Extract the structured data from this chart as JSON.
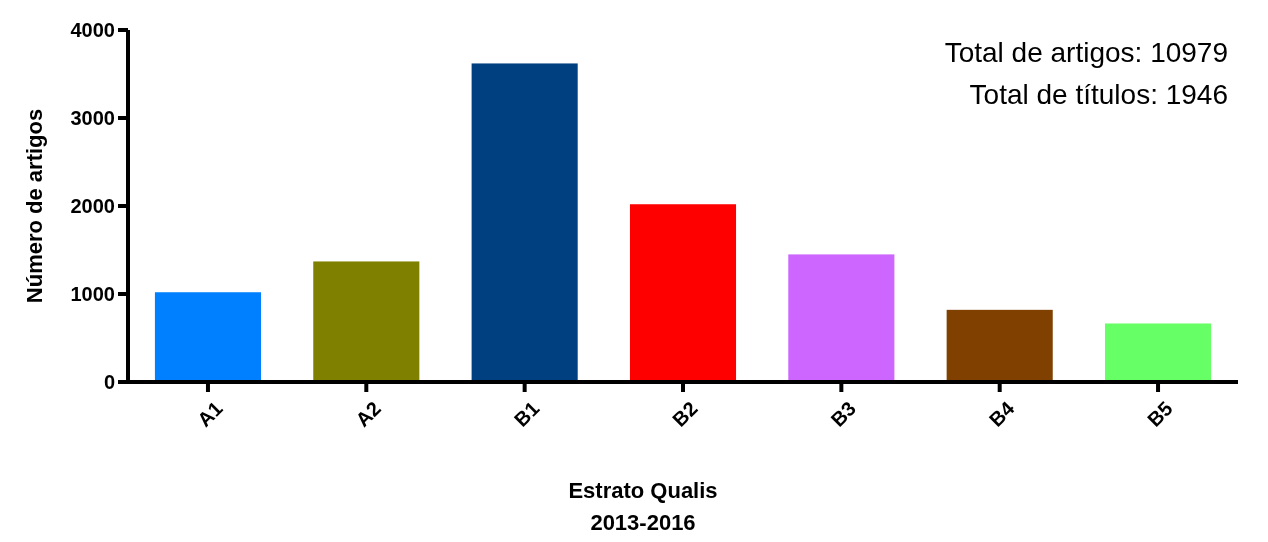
{
  "chart_data": {
    "type": "bar",
    "xlabel": "Estrato Qualis\n2013-2016",
    "ylabel": "Número de artigos",
    "categories": [
      "A1",
      "A2",
      "B1",
      "B2",
      "B3",
      "B4",
      "B5"
    ],
    "values": [
      1020,
      1370,
      3620,
      2020,
      1450,
      820,
      665
    ],
    "colors": [
      "#0080ff",
      "#808000",
      "#004080",
      "#ff0000",
      "#cc66ff",
      "#804000",
      "#66ff66"
    ],
    "ylim": [
      0,
      4000
    ],
    "yticks": [
      0,
      1000,
      2000,
      3000,
      4000
    ],
    "annotations": [
      "Total de artigos: 10979",
      "Total de títulos: 1946"
    ]
  }
}
